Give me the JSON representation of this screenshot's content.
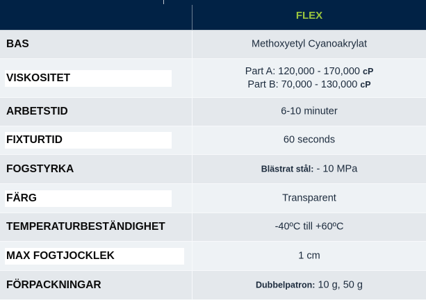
{
  "header": {
    "product": "FLEX"
  },
  "rows": [
    {
      "label": "BAS",
      "value": "Methoxyetyl  Cyanoakrylat"
    },
    {
      "label": "VISKOSITET",
      "value_a": "Part A: 120,000 - 170,000",
      "unit_a": "cP",
      "value_b": "Part B: 70,000 - 130,000",
      "unit_b": "cP"
    },
    {
      "label": "ARBETSTID",
      "value": "6-10 minuter"
    },
    {
      "label": "FIXTURTID",
      "value": "60 seconds"
    },
    {
      "label": "FOGSTYRKA",
      "prefix": "Blästrat stål:",
      "value": " - 10 MPa"
    },
    {
      "label": "FÄRG",
      "value": "Transparent"
    },
    {
      "label": "TEMPERATURBESTÄNDIGHET",
      "value": "-40ºC till +60ºC"
    },
    {
      "label": "MAX FOGTJOCKLEK",
      "value": "1 cm"
    },
    {
      "label": "FÖRPACKNINGAR",
      "prefix": "Dubbelpatron:",
      "value": " 10 g, 50 g"
    }
  ]
}
